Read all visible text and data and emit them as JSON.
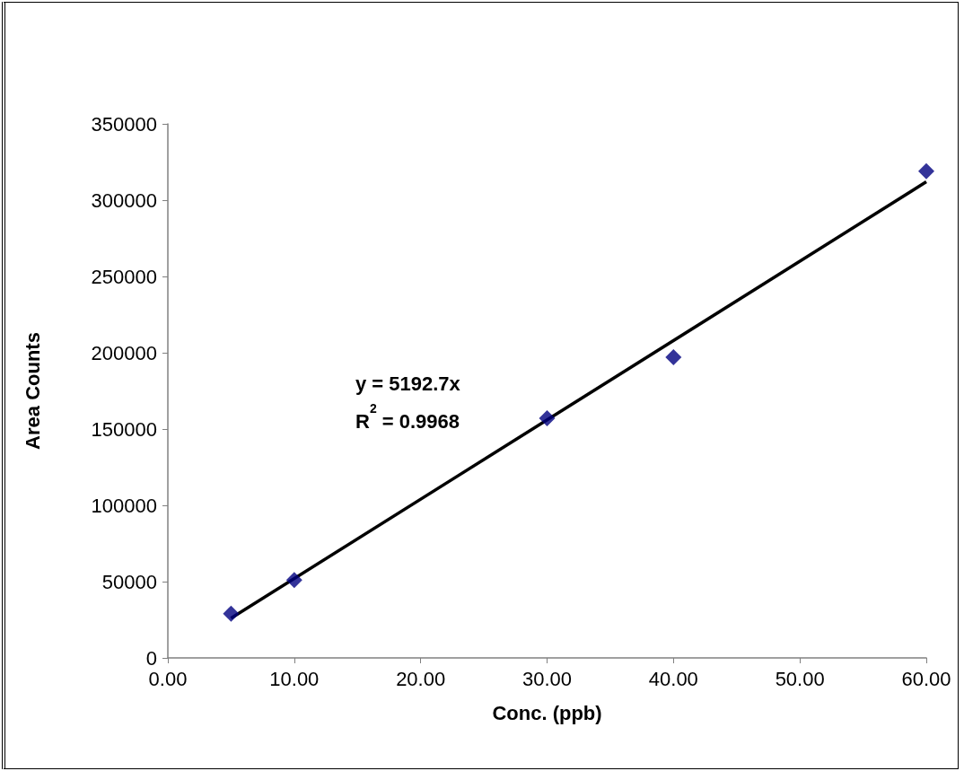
{
  "chart_data": {
    "type": "scatter",
    "xlabel": "Conc. (ppb)",
    "ylabel": "Area Counts",
    "x": [
      5,
      10,
      30,
      40,
      60
    ],
    "series": [
      {
        "color": "#000080",
        "marker": "diamond",
        "values": [
          29000,
          51000,
          157000,
          197000,
          319000
        ]
      },
      {
        "type": "line",
        "color": "#000000",
        "marker": "none",
        "line_style": "solid",
        "x": [
          5,
          60
        ],
        "values": [
          26000,
          312000
        ]
      }
    ],
    "annotations": [
      "y = 5192.7x",
      "R$^{2}$ = 0.9968"
    ],
    "xlim": [
      0,
      60
    ],
    "xticks": [
      {
        "value": 0,
        "label": "0.00"
      },
      {
        "value": 10,
        "label": "10.00"
      },
      {
        "value": 20,
        "label": "20.00"
      },
      {
        "value": 30,
        "label": "30.00"
      },
      {
        "value": 40,
        "label": "40.00"
      },
      {
        "value": 50,
        "label": "50.00"
      },
      {
        "value": 60,
        "label": "60.00"
      }
    ],
    "ylim": [
      0,
      350000
    ],
    "yticks": [
      0,
      50000,
      100000,
      150000,
      200000,
      250000,
      300000,
      350000
    ],
    "grid": false
  }
}
